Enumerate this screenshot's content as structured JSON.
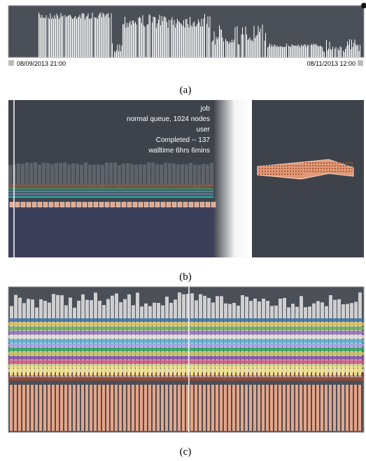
{
  "panel_a": {
    "start_label": "08/09/2013 21:00",
    "end_label": "08/11/2013 12:00",
    "caption": "(a)"
  },
  "panel_b": {
    "job_lines": [
      "job",
      "normal queue, 1024 nodes",
      "user",
      "Completed -- 137",
      "walltime 6hrs 6mins"
    ],
    "caption": "(b)"
  },
  "panel_c": {
    "caption": "(c)"
  }
}
